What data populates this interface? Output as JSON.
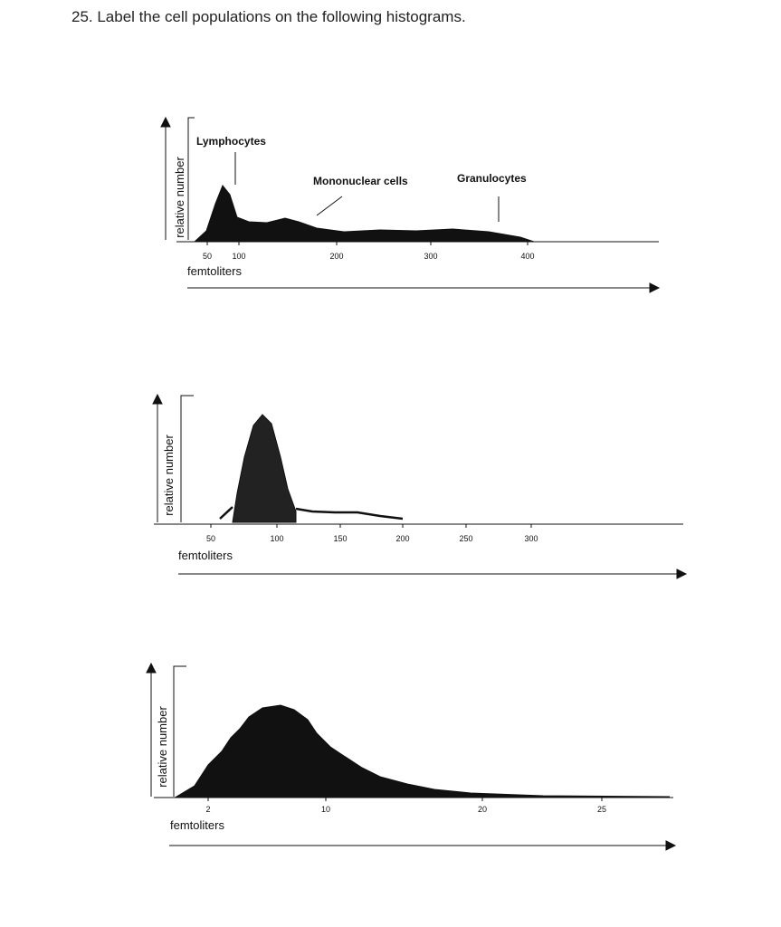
{
  "header": {
    "question": "25. Label the cell populations on the following histograms."
  },
  "histograms": [
    {
      "y_label": "relative number",
      "x_label": "femtoliters",
      "xticks": [
        50,
        100,
        200,
        300,
        400
      ],
      "annotations": [
        "Lymphocytes",
        "Mononuclear cells",
        "Granulocytes"
      ]
    },
    {
      "y_label": "relative number",
      "x_label": "femtoliters",
      "xticks": [
        50,
        100,
        150,
        200,
        250,
        300
      ]
    },
    {
      "y_label": "relative number",
      "x_label": "femtoliters",
      "xticks": [
        2,
        10,
        20,
        25
      ]
    }
  ]
}
